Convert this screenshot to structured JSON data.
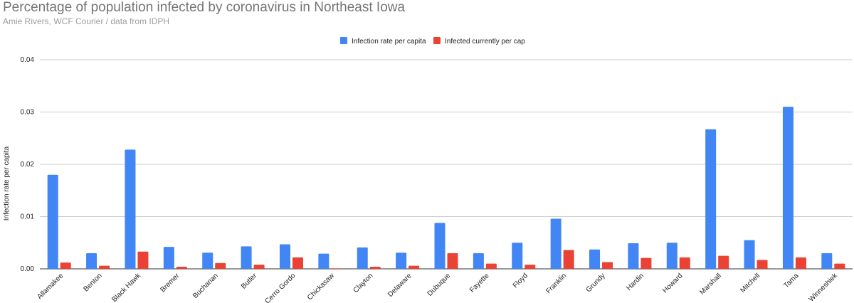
{
  "chart_data": {
    "type": "bar",
    "title": "Percentage of population infected by coronavirus in Northeast Iowa",
    "subtitle": "Amie Rivers, WCF Courier / data from IDPH",
    "xlabel": "",
    "ylabel": "Infection rate per capita",
    "ylim": [
      0,
      0.04
    ],
    "yticks": [
      "0.00",
      "0.01",
      "0.02",
      "0.03",
      "0.04"
    ],
    "ytick_values": [
      0,
      0.01,
      0.02,
      0.03,
      0.04
    ],
    "legend_position": "top-center",
    "grid": true,
    "categories": [
      "Allamakee",
      "Benton",
      "Black Hawk",
      "Bremer",
      "Buchanan",
      "Butler",
      "Cerro Gordo",
      "Chickasaw",
      "Clayton",
      "Delaware",
      "Dubuque",
      "Fayette",
      "Floyd",
      "Franklin",
      "Grundy",
      "Hardin",
      "Howard",
      "Marshall",
      "Mitchell",
      "Tama",
      "Winneshiek"
    ],
    "series": [
      {
        "name": "Infection rate per capita",
        "color": "#4285f4",
        "values": [
          0.018,
          0.003,
          0.0228,
          0.0042,
          0.0031,
          0.0043,
          0.0047,
          0.0029,
          0.0041,
          0.0031,
          0.0088,
          0.003,
          0.005,
          0.0096,
          0.0037,
          0.0049,
          0.005,
          0.0267,
          0.0055,
          0.031,
          0.003
        ]
      },
      {
        "name": "Infected currently per cap",
        "color": "#ea4335",
        "values": [
          0.0012,
          0.0006,
          0.0033,
          0.0004,
          0.0011,
          0.0008,
          0.0022,
          0.0001,
          0.0004,
          0.0006,
          0.003,
          0.001,
          0.0008,
          0.0036,
          0.0013,
          0.0021,
          0.0022,
          0.0025,
          0.0017,
          0.0022,
          0.001
        ]
      }
    ]
  }
}
